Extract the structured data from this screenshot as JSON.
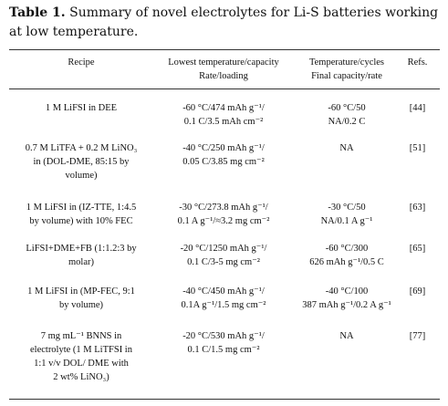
{
  "caption": {
    "label": "Table 1.",
    "text": " Summary of novel electrolytes for Li-S batteries working at low temperature."
  },
  "table": {
    "headers": {
      "recipe": "Recipe",
      "lowest_1": "Lowest temperature/capacity",
      "lowest_2": "Rate/loading",
      "cycles_1": "Temperature/cycles",
      "cycles_2": "Final capacity/rate",
      "refs": "Refs."
    },
    "rows": [
      {
        "recipe": [
          "1 M LiFSI in DEE"
        ],
        "lowest": [
          "-60 °C/474 mAh g⁻¹/",
          "0.1 C/3.5 mAh cm⁻²"
        ],
        "cycles": [
          "-60 °C/50",
          "NA/0.2 C"
        ],
        "ref": "[44]"
      },
      {
        "recipe": [
          "0.7 M LiTFA + 0.2 M LiNO₃",
          "in (DOL-DME, 85:15 by",
          "volume)"
        ],
        "lowest": [
          "-40 °C/250 mAh g⁻¹/",
          "0.05 C/3.85 mg cm⁻²"
        ],
        "cycles": [
          "NA"
        ],
        "ref": "[51]"
      },
      {
        "recipe": [
          "1 M LiFSI in (IZ-TTE, 1:4.5",
          "by volume) with 10% FEC"
        ],
        "lowest": [
          "-30 °C/273.8 mAh g⁻¹/",
          "0.1 A g⁻¹/≈3.2 mg cm⁻²"
        ],
        "cycles": [
          "-30 °C/50",
          "NA/0.1 A g⁻¹"
        ],
        "ref": "[63]"
      },
      {
        "recipe": [
          "LiFSI+DME+FB (1:1.2:3 by",
          "molar)"
        ],
        "lowest": [
          "-20 °C/1250 mAh g⁻¹/",
          "0.1 C/3-5 mg cm⁻²"
        ],
        "cycles": [
          "-60 °C/300",
          "626 mAh g⁻¹/0.5 C"
        ],
        "ref": "[65]"
      },
      {
        "recipe": [
          "1 M LiFSI in (MP-FEC, 9:1",
          "by volume)"
        ],
        "lowest": [
          "-40 °C/450 mAh g⁻¹/",
          "0.1A g⁻¹/1.5 mg cm⁻²"
        ],
        "cycles": [
          "-40 °C/100",
          "387 mAh g⁻¹/0.2 A g⁻¹"
        ],
        "ref": "[69]"
      },
      {
        "recipe": [
          "7 mg mL⁻¹ BNNS in",
          "electrolyte (1 M LiTFSI in",
          "1:1 v/v DOL/ DME with",
          "2 wt% LiNO₃)"
        ],
        "lowest": [
          "-20 °C/530 mAh g⁻¹/",
          "0.1 C/1.5 mg cm⁻²"
        ],
        "cycles": [
          "NA"
        ],
        "ref": "[77]"
      }
    ]
  }
}
